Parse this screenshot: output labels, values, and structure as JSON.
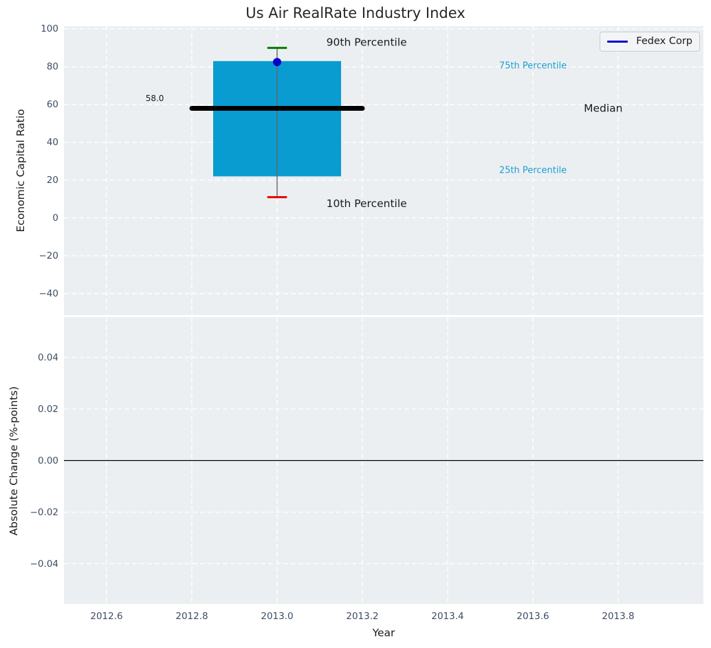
{
  "legend": {
    "label": "Fedex Corp",
    "line_color": "#0000cd"
  },
  "style": {
    "axes_bg": "#eceff1",
    "grid_color": "#ffffff",
    "tick_color": "#3d4c63",
    "text_color": "#1a1a1a",
    "title_color": "#262626"
  },
  "chart_data": [
    {
      "type": "box",
      "title": "Us Air RealRate Industry Index",
      "ylabel": "Economic Capital Ratio",
      "xlim": [
        2012.5,
        2014.0
      ],
      "ylim": [
        -51.4,
        101.5
      ],
      "grid": true,
      "legend_position": "upper right",
      "xticks": {
        "values": [
          2012.6,
          2012.8,
          2013.0,
          2013.2,
          2013.4,
          2013.6,
          2013.8
        ],
        "labels": [
          "2012.6",
          "2012.8",
          "2013.0",
          "2013.2",
          "2013.4",
          "2013.6",
          "2013.8"
        ]
      },
      "show_xticklabels": false,
      "yticks": {
        "values": [
          100,
          80,
          60,
          40,
          20,
          0,
          -20,
          -40
        ],
        "labels": [
          "100",
          "80",
          "60",
          "40",
          "20",
          "0",
          "−20",
          "−40"
        ]
      },
      "box": {
        "x": 2013.0,
        "box_halfwidth": 0.15,
        "median_halfwidth": 0.2,
        "cap_halfwidth": 0.023,
        "p10": 11,
        "p25": 22,
        "median": 58,
        "p75": 83,
        "p90": 90,
        "median_label": "58.0",
        "fill_color": "#089cd1",
        "median_color": "#000000",
        "whisker_color": "#666666",
        "cap90_color": "#007f00",
        "cap10_color": "#e60000"
      },
      "series": [
        {
          "name": "Fedex Corp",
          "color": "#0000cd",
          "marker": "circle",
          "points": [
            {
              "x": 2013.0,
              "y": 82.5
            }
          ]
        }
      ],
      "annotations": [
        {
          "text": "90th Percentile",
          "x": 2013.21,
          "y": 93.0,
          "color": "#1a1a1a",
          "size": 15.5
        },
        {
          "text": "75th Percentile",
          "x": 2013.6,
          "y": 80.4,
          "color": "#1a9fd4",
          "size": 13
        },
        {
          "text": "Median",
          "x": 2013.765,
          "y": 58.0,
          "color": "#1a1a1a",
          "size": 15.5
        },
        {
          "text": "25th Percentile",
          "x": 2013.6,
          "y": 25.1,
          "color": "#1a9fd4",
          "size": 13
        },
        {
          "text": "10th Percentile",
          "x": 2013.21,
          "y": 7.6,
          "color": "#1a1a1a",
          "size": 15.5
        },
        {
          "text": "58.0",
          "x": 2012.713,
          "y": 63.3,
          "color": "#1a1a1a",
          "size": 12
        }
      ]
    },
    {
      "type": "line",
      "ylabel": "Absolute Change (%-points)",
      "xlabel": "Year",
      "xlim": [
        2012.5,
        2014.0
      ],
      "ylim": [
        -0.0556,
        0.0556
      ],
      "grid": true,
      "xticks": {
        "values": [
          2012.6,
          2012.8,
          2013.0,
          2013.2,
          2013.4,
          2013.6,
          2013.8
        ],
        "labels": [
          "2012.6",
          "2012.8",
          "2013.0",
          "2013.2",
          "2013.4",
          "2013.6",
          "2013.8"
        ]
      },
      "show_xticklabels": true,
      "yticks": {
        "values": [
          0.04,
          0.02,
          0,
          -0.02,
          -0.04
        ],
        "labels": [
          "0.04",
          "0.02",
          "0.00",
          "−0.02",
          "−0.04"
        ]
      },
      "zero_line": true,
      "series": []
    }
  ]
}
